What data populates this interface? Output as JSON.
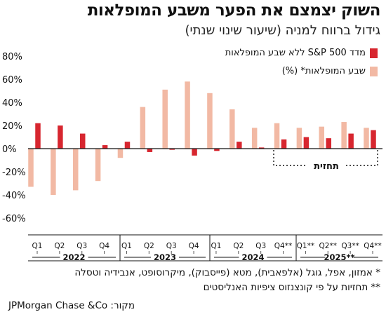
{
  "title": "השוק יצמצם את הפער משבע המופלאות",
  "subtitle": "גידול ברווח למניה (שיעור שינוי שנתי)",
  "legend": {
    "series1": "מדד S&P 500 ללא שבע המופלאות",
    "series2": "שבע המופלאות* (%)"
  },
  "forecast_label": "תחזית",
  "footnotes": [
    "* אמזון, אפל, גוגל (אלפאבית), מטא (פייסבוק), מיקרוסופט, אנבידיה וטסלה",
    "** תחזיות על פי קונצנזוס ציפיות האנליסטים"
  ],
  "source": "JPMorgan Chase &Co :מקור",
  "colors": {
    "sp500": "#d7262f",
    "mag7": "#f2b9a4"
  },
  "chart_data": {
    "type": "bar",
    "categories": [
      "Q1",
      "Q2",
      "Q3",
      "Q4",
      "Q1",
      "Q2",
      "Q3",
      "Q4",
      "Q1",
      "Q2",
      "Q3",
      "Q4**",
      "Q1**",
      "Q2**",
      "Q3**",
      "Q4**"
    ],
    "year_labels": [
      "2022",
      "2023",
      "2024",
      "2025**"
    ],
    "series": [
      {
        "name": "מדד S&P 500 ללא שבע המופלאות",
        "values": [
          22,
          20,
          13,
          3,
          6,
          -3,
          -1,
          -6,
          -2,
          6,
          1,
          8,
          10,
          9,
          13,
          16
        ]
      },
      {
        "name": "שבע המופלאות* (%)",
        "values": [
          -33,
          -40,
          -36,
          -28,
          -8,
          36,
          51,
          58,
          48,
          34,
          18,
          22,
          18,
          19,
          23,
          18
        ]
      }
    ],
    "ylim": [
      -70,
      85
    ],
    "yticks": [
      80,
      60,
      40,
      20,
      0,
      -20,
      -40,
      -60
    ],
    "ytick_labels": [
      "80%",
      "60%",
      "40%",
      "20%",
      "0%",
      "-20%",
      "-40%",
      "-60%"
    ],
    "grid": false,
    "legend_position": "top-right"
  }
}
